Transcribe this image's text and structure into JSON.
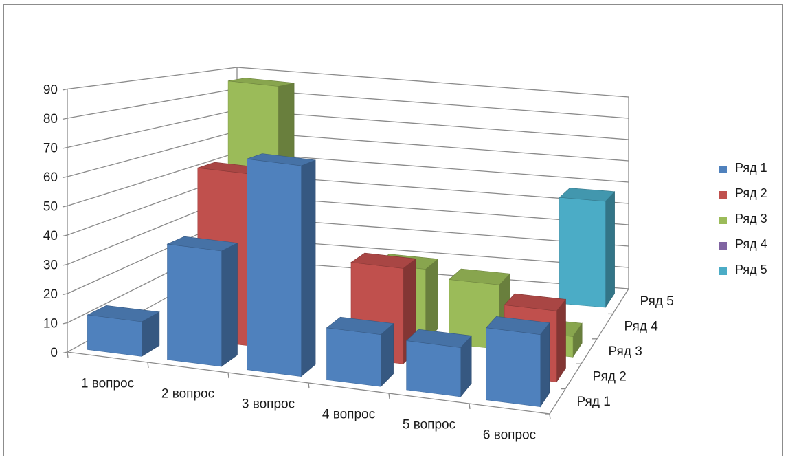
{
  "chart_data": {
    "type": "bar",
    "title": "",
    "xlabel": "",
    "ylabel": "",
    "ylim": [
      0,
      90
    ],
    "y_ticks": [
      "0",
      "10",
      "20",
      "30",
      "40",
      "50",
      "60",
      "70",
      "80",
      "90"
    ],
    "categories": [
      "1 вопрос",
      "2 вопрос",
      "3 вопрос",
      "4 вопрос",
      "5 вопрос",
      "6 вопрос"
    ],
    "depth_categories": [
      "Ряд 1",
      "Ряд 2",
      "Ряд 3",
      "Ряд 4",
      "Ряд 5"
    ],
    "grid": true,
    "legend_position": "right",
    "series": [
      {
        "name": "Ряд 1",
        "color": "#4f81bd",
        "values": [
          12,
          40,
          73,
          18,
          17,
          25
        ]
      },
      {
        "name": "Ряд 2",
        "color": "#c0504d",
        "values": [
          0,
          63,
          0,
          35,
          0,
          26
        ]
      },
      {
        "name": "Ряд 3",
        "color": "#9bbb59",
        "values": [
          0,
          93,
          0,
          28,
          25,
          8
        ]
      },
      {
        "name": "Ряд 4",
        "color": "#8064a2",
        "values": [
          0,
          0,
          0,
          0,
          0,
          0
        ]
      },
      {
        "name": "Ряд 5",
        "color": "#4bacc6",
        "values": [
          0,
          0,
          0,
          0,
          0,
          47
        ]
      }
    ]
  }
}
